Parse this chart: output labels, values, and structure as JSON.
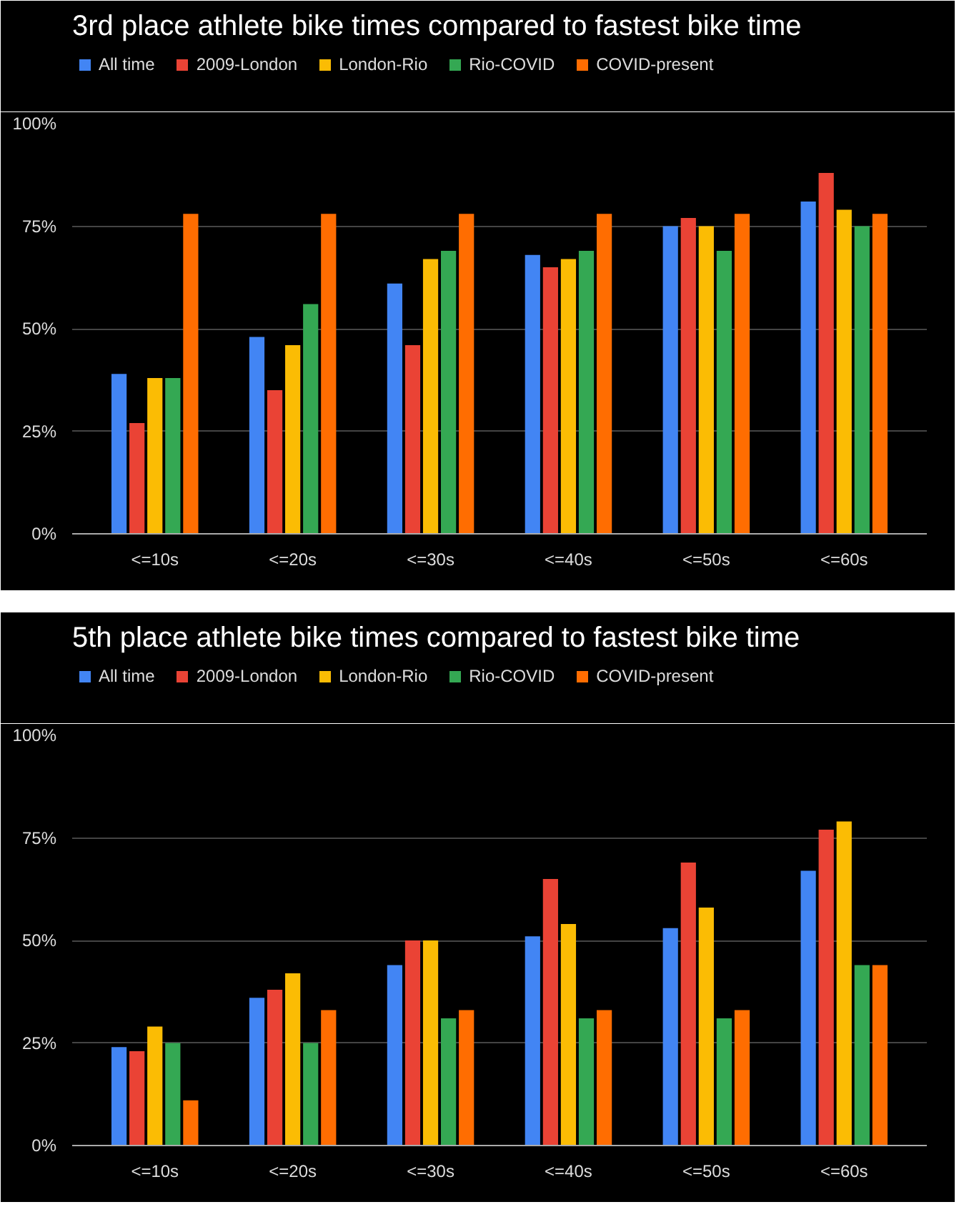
{
  "chart_data": [
    {
      "type": "bar",
      "title": "3rd place athlete bike times compared to fastest bike time",
      "categories": [
        "<=10s",
        "<=20s",
        "<=30s",
        "<=40s",
        "<=50s",
        "<=60s"
      ],
      "series": [
        {
          "name": "All time",
          "color": "#4285f4",
          "values": [
            39,
            48,
            61,
            68,
            75,
            81
          ]
        },
        {
          "name": "2009-London",
          "color": "#ea4335",
          "values": [
            27,
            35,
            46,
            65,
            77,
            88
          ]
        },
        {
          "name": "London-Rio",
          "color": "#fbbc04",
          "values": [
            38,
            46,
            67,
            67,
            75,
            79
          ]
        },
        {
          "name": "Rio-COVID",
          "color": "#34a853",
          "values": [
            38,
            56,
            69,
            69,
            69,
            75
          ]
        },
        {
          "name": "COVID-present",
          "color": "#ff6d01",
          "values": [
            78,
            78,
            78,
            78,
            78,
            78
          ]
        }
      ],
      "ylim": [
        0,
        100
      ],
      "yticks": [
        {
          "value": 0,
          "label": "0%"
        },
        {
          "value": 25,
          "label": "25%"
        },
        {
          "value": 50,
          "label": "50%"
        },
        {
          "value": 75,
          "label": "75%"
        },
        {
          "value": 100,
          "label": "100%"
        }
      ],
      "grid": "y",
      "legend": "top"
    },
    {
      "type": "bar",
      "title": "5th place athlete bike times compared to fastest bike time",
      "categories": [
        "<=10s",
        "<=20s",
        "<=30s",
        "<=40s",
        "<=50s",
        "<=60s"
      ],
      "series": [
        {
          "name": "All time",
          "color": "#4285f4",
          "values": [
            24,
            36,
            44,
            51,
            53,
            67
          ]
        },
        {
          "name": "2009-London",
          "color": "#ea4335",
          "values": [
            23,
            38,
            50,
            65,
            69,
            77
          ]
        },
        {
          "name": "London-Rio",
          "color": "#fbbc04",
          "values": [
            29,
            42,
            50,
            54,
            58,
            79
          ]
        },
        {
          "name": "Rio-COVID",
          "color": "#34a853",
          "values": [
            25,
            25,
            31,
            31,
            31,
            44
          ]
        },
        {
          "name": "COVID-present",
          "color": "#ff6d01",
          "values": [
            11,
            33,
            33,
            33,
            33,
            44
          ]
        }
      ],
      "ylim": [
        0,
        100
      ],
      "yticks": [
        {
          "value": 0,
          "label": "0%"
        },
        {
          "value": 25,
          "label": "25%"
        },
        {
          "value": 50,
          "label": "50%"
        },
        {
          "value": 75,
          "label": "75%"
        },
        {
          "value": 100,
          "label": "100%"
        }
      ],
      "grid": "y",
      "legend": "top"
    }
  ]
}
